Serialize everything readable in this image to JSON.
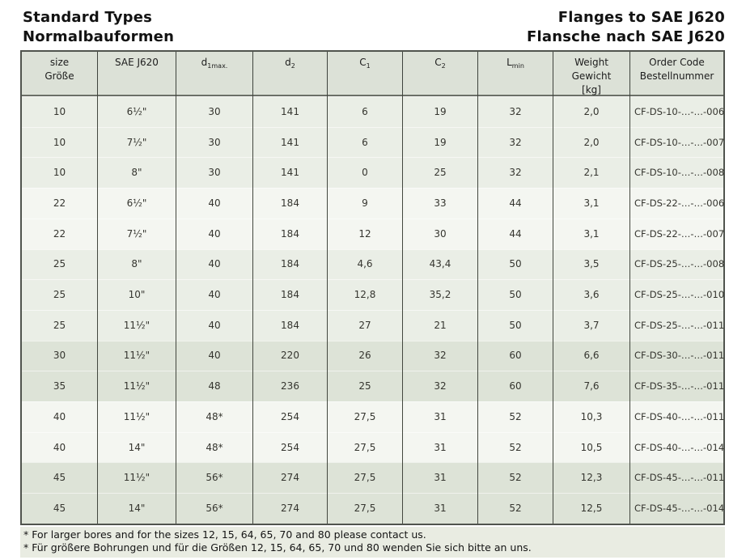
{
  "titles": {
    "left_line1": "Standard Types",
    "left_line2": "Normalbauformen",
    "right_line1": "Flanges to SAE J620",
    "right_line2": "Flansche nach SAE J620"
  },
  "colors": {
    "border_dark": "#50544e",
    "header_bg": "#dce1d7",
    "row_light": "#eaeee6",
    "row_lighter": "#f4f6f1",
    "row_dark": "#dde3d7",
    "footer_bg": "#e9ece2"
  },
  "table": {
    "cell_keys": [
      "size",
      "sae",
      "d1",
      "d2",
      "c1",
      "c2",
      "lmin",
      "weight",
      "order"
    ],
    "columns": [
      {
        "id": "size",
        "lines": [
          "size",
          "Größe"
        ]
      },
      {
        "id": "sae",
        "lines": [
          "SAE J620"
        ]
      },
      {
        "id": "d1",
        "base": "d",
        "sub": "1max."
      },
      {
        "id": "d2",
        "base": "d",
        "sub": "2"
      },
      {
        "id": "c1",
        "base": "C",
        "sub": "1"
      },
      {
        "id": "c2",
        "base": "C",
        "sub": "2"
      },
      {
        "id": "lmin",
        "base": "L",
        "sub": "min"
      },
      {
        "id": "weight",
        "lines": [
          "Weight",
          "Gewicht",
          "[kg]"
        ]
      },
      {
        "id": "order",
        "lines": [
          "Order Code",
          "Bestellnummer"
        ]
      }
    ],
    "rows": [
      {
        "size": "10",
        "sae": "6½\"",
        "d1": "30",
        "d2": "141",
        "c1": "6",
        "c2": "19",
        "lmin": "32",
        "weight": "2,0",
        "order": "CF-DS-10-…-…-006",
        "shade": "a"
      },
      {
        "size": "10",
        "sae": "7½\"",
        "d1": "30",
        "d2": "141",
        "c1": "6",
        "c2": "19",
        "lmin": "32",
        "weight": "2,0",
        "order": "CF-DS-10-…-…-007",
        "shade": "a"
      },
      {
        "size": "10",
        "sae": "8\"",
        "d1": "30",
        "d2": "141",
        "c1": "0",
        "c2": "25",
        "lmin": "32",
        "weight": "2,1",
        "order": "CF-DS-10-…-…-008",
        "shade": "a"
      },
      {
        "size": "22",
        "sae": "6½\"",
        "d1": "40",
        "d2": "184",
        "c1": "9",
        "c2": "33",
        "lmin": "44",
        "weight": "3,1",
        "order": "CF-DS-22-…-…-006",
        "shade": "b"
      },
      {
        "size": "22",
        "sae": "7½\"",
        "d1": "40",
        "d2": "184",
        "c1": "12",
        "c2": "30",
        "lmin": "44",
        "weight": "3,1",
        "order": "CF-DS-22-…-…-007",
        "shade": "b"
      },
      {
        "size": "25",
        "sae": "8\"",
        "d1": "40",
        "d2": "184",
        "c1": "4,6",
        "c2": "43,4",
        "lmin": "50",
        "weight": "3,5",
        "order": "CF-DS-25-…-…-008",
        "shade": "a"
      },
      {
        "size": "25",
        "sae": "10\"",
        "d1": "40",
        "d2": "184",
        "c1": "12,8",
        "c2": "35,2",
        "lmin": "50",
        "weight": "3,6",
        "order": "CF-DS-25-…-…-010",
        "shade": "a"
      },
      {
        "size": "25",
        "sae": "11½\"",
        "d1": "40",
        "d2": "184",
        "c1": "27",
        "c2": "21",
        "lmin": "50",
        "weight": "3,7",
        "order": "CF-DS-25-…-…-011",
        "shade": "a"
      },
      {
        "size": "30",
        "sae": "11½\"",
        "d1": "40",
        "d2": "220",
        "c1": "26",
        "c2": "32",
        "lmin": "60",
        "weight": "6,6",
        "order": "CF-DS-30-…-…-011",
        "shade": "c"
      },
      {
        "size": "35",
        "sae": "11½\"",
        "d1": "48",
        "d2": "236",
        "c1": "25",
        "c2": "32",
        "lmin": "60",
        "weight": "7,6",
        "order": "CF-DS-35-…-…-011",
        "shade": "c"
      },
      {
        "size": "40",
        "sae": "11½\"",
        "d1": "48*",
        "d2": "254",
        "c1": "27,5",
        "c2": "31",
        "lmin": "52",
        "weight": "10,3",
        "order": "CF-DS-40-…-…-011",
        "shade": "b"
      },
      {
        "size": "40",
        "sae": "14\"",
        "d1": "48*",
        "d2": "254",
        "c1": "27,5",
        "c2": "31",
        "lmin": "52",
        "weight": "10,5",
        "order": "CF-DS-40-…-…-014",
        "shade": "b"
      },
      {
        "size": "45",
        "sae": "11½\"",
        "d1": "56*",
        "d2": "274",
        "c1": "27,5",
        "c2": "31",
        "lmin": "52",
        "weight": "12,3",
        "order": "CF-DS-45-…-…-011",
        "shade": "c"
      },
      {
        "size": "45",
        "sae": "14\"",
        "d1": "56*",
        "d2": "274",
        "c1": "27,5",
        "c2": "31",
        "lmin": "52",
        "weight": "12,5",
        "order": "CF-DS-45-…-…-014",
        "shade": "c"
      }
    ]
  },
  "footnotes": [
    "* For larger bores and for the sizes 12, 15, 64, 65, 70 and 80 please contact us.",
    "* Für größere Bohrungen und für die Größen 12, 15, 64, 65, 70 und 80 wenden Sie sich bitte an uns."
  ]
}
